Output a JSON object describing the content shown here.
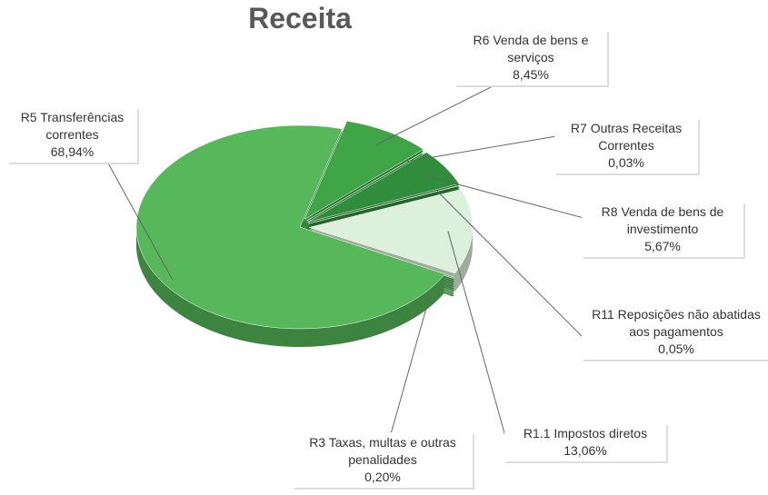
{
  "chart_data": {
    "type": "pie",
    "title": "Receita",
    "categories": [
      "R6 Venda de bens e serviços",
      "R7 Outras Receitas Correntes",
      "R8 Venda de bens de investimento",
      "R11 Reposições não abatidas aos pagamentos",
      "R1.1 Impostos diretos",
      "R3 Taxas, multas e outras penalidades",
      "R5 Transferências correntes"
    ],
    "values": [
      8.45,
      0.03,
      5.67,
      0.05,
      13.06,
      0.2,
      68.94
    ],
    "value_labels": [
      "8,45%",
      "0,03%",
      "5,67%",
      "0,05%",
      "13,06%",
      "0,20%",
      "68,94%"
    ],
    "colors": [
      "#3fa547",
      "#2f8f3a",
      "#2f8d3b",
      "#3a9a44",
      "#dcf0dc",
      "#4aaa50",
      "#56b85a"
    ]
  }
}
